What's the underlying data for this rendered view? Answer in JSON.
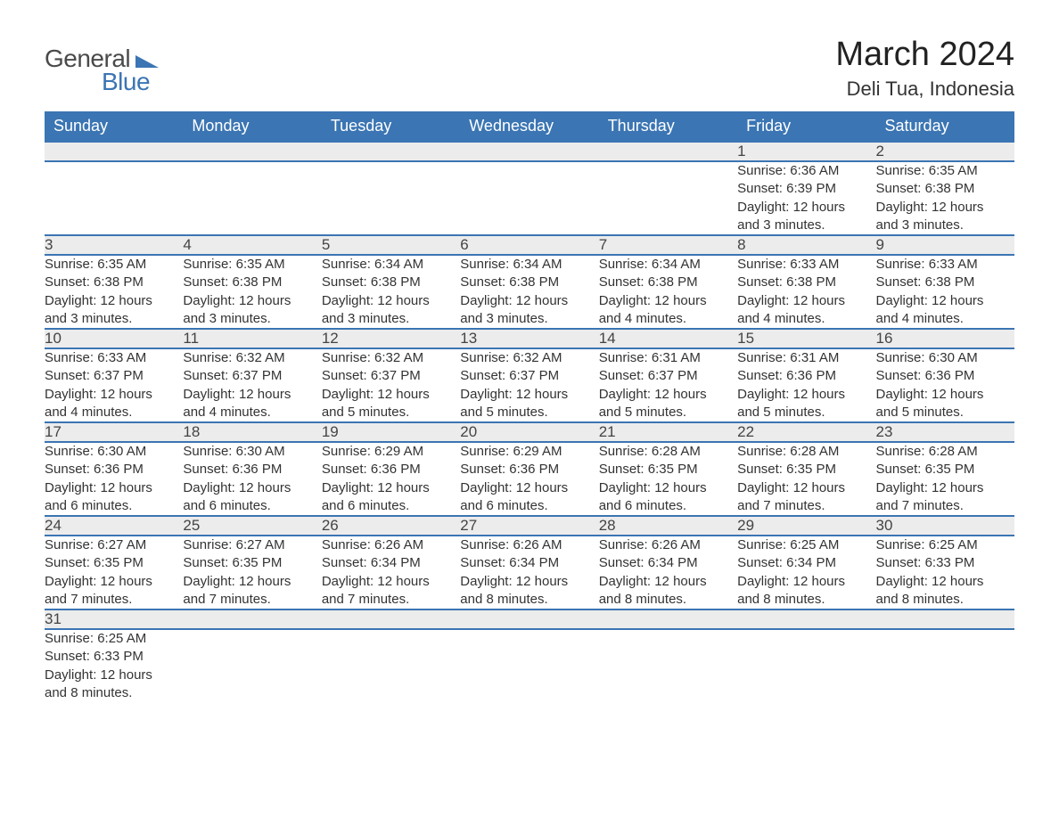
{
  "brand": {
    "part1": "General",
    "part2": "Blue",
    "flag_color": "#3b75b3",
    "text_gray": "#4a4a4a"
  },
  "title": "March 2024",
  "location": "Deli Tua, Indonesia",
  "colors": {
    "header_bg": "#3b75b3",
    "header_fg": "#ffffff",
    "daynum_bg": "#ececec",
    "row_divider": "#3b75b3",
    "body_text": "#333333"
  },
  "weekdays": [
    "Sunday",
    "Monday",
    "Tuesday",
    "Wednesday",
    "Thursday",
    "Friday",
    "Saturday"
  ],
  "weeks": [
    [
      null,
      null,
      null,
      null,
      null,
      {
        "n": "1",
        "sr": "Sunrise: 6:36 AM",
        "ss": "Sunset: 6:39 PM",
        "d1": "Daylight: 12 hours",
        "d2": "and 3 minutes."
      },
      {
        "n": "2",
        "sr": "Sunrise: 6:35 AM",
        "ss": "Sunset: 6:38 PM",
        "d1": "Daylight: 12 hours",
        "d2": "and 3 minutes."
      }
    ],
    [
      {
        "n": "3",
        "sr": "Sunrise: 6:35 AM",
        "ss": "Sunset: 6:38 PM",
        "d1": "Daylight: 12 hours",
        "d2": "and 3 minutes."
      },
      {
        "n": "4",
        "sr": "Sunrise: 6:35 AM",
        "ss": "Sunset: 6:38 PM",
        "d1": "Daylight: 12 hours",
        "d2": "and 3 minutes."
      },
      {
        "n": "5",
        "sr": "Sunrise: 6:34 AM",
        "ss": "Sunset: 6:38 PM",
        "d1": "Daylight: 12 hours",
        "d2": "and 3 minutes."
      },
      {
        "n": "6",
        "sr": "Sunrise: 6:34 AM",
        "ss": "Sunset: 6:38 PM",
        "d1": "Daylight: 12 hours",
        "d2": "and 3 minutes."
      },
      {
        "n": "7",
        "sr": "Sunrise: 6:34 AM",
        "ss": "Sunset: 6:38 PM",
        "d1": "Daylight: 12 hours",
        "d2": "and 4 minutes."
      },
      {
        "n": "8",
        "sr": "Sunrise: 6:33 AM",
        "ss": "Sunset: 6:38 PM",
        "d1": "Daylight: 12 hours",
        "d2": "and 4 minutes."
      },
      {
        "n": "9",
        "sr": "Sunrise: 6:33 AM",
        "ss": "Sunset: 6:38 PM",
        "d1": "Daylight: 12 hours",
        "d2": "and 4 minutes."
      }
    ],
    [
      {
        "n": "10",
        "sr": "Sunrise: 6:33 AM",
        "ss": "Sunset: 6:37 PM",
        "d1": "Daylight: 12 hours",
        "d2": "and 4 minutes."
      },
      {
        "n": "11",
        "sr": "Sunrise: 6:32 AM",
        "ss": "Sunset: 6:37 PM",
        "d1": "Daylight: 12 hours",
        "d2": "and 4 minutes."
      },
      {
        "n": "12",
        "sr": "Sunrise: 6:32 AM",
        "ss": "Sunset: 6:37 PM",
        "d1": "Daylight: 12 hours",
        "d2": "and 5 minutes."
      },
      {
        "n": "13",
        "sr": "Sunrise: 6:32 AM",
        "ss": "Sunset: 6:37 PM",
        "d1": "Daylight: 12 hours",
        "d2": "and 5 minutes."
      },
      {
        "n": "14",
        "sr": "Sunrise: 6:31 AM",
        "ss": "Sunset: 6:37 PM",
        "d1": "Daylight: 12 hours",
        "d2": "and 5 minutes."
      },
      {
        "n": "15",
        "sr": "Sunrise: 6:31 AM",
        "ss": "Sunset: 6:36 PM",
        "d1": "Daylight: 12 hours",
        "d2": "and 5 minutes."
      },
      {
        "n": "16",
        "sr": "Sunrise: 6:30 AM",
        "ss": "Sunset: 6:36 PM",
        "d1": "Daylight: 12 hours",
        "d2": "and 5 minutes."
      }
    ],
    [
      {
        "n": "17",
        "sr": "Sunrise: 6:30 AM",
        "ss": "Sunset: 6:36 PM",
        "d1": "Daylight: 12 hours",
        "d2": "and 6 minutes."
      },
      {
        "n": "18",
        "sr": "Sunrise: 6:30 AM",
        "ss": "Sunset: 6:36 PM",
        "d1": "Daylight: 12 hours",
        "d2": "and 6 minutes."
      },
      {
        "n": "19",
        "sr": "Sunrise: 6:29 AM",
        "ss": "Sunset: 6:36 PM",
        "d1": "Daylight: 12 hours",
        "d2": "and 6 minutes."
      },
      {
        "n": "20",
        "sr": "Sunrise: 6:29 AM",
        "ss": "Sunset: 6:36 PM",
        "d1": "Daylight: 12 hours",
        "d2": "and 6 minutes."
      },
      {
        "n": "21",
        "sr": "Sunrise: 6:28 AM",
        "ss": "Sunset: 6:35 PM",
        "d1": "Daylight: 12 hours",
        "d2": "and 6 minutes."
      },
      {
        "n": "22",
        "sr": "Sunrise: 6:28 AM",
        "ss": "Sunset: 6:35 PM",
        "d1": "Daylight: 12 hours",
        "d2": "and 7 minutes."
      },
      {
        "n": "23",
        "sr": "Sunrise: 6:28 AM",
        "ss": "Sunset: 6:35 PM",
        "d1": "Daylight: 12 hours",
        "d2": "and 7 minutes."
      }
    ],
    [
      {
        "n": "24",
        "sr": "Sunrise: 6:27 AM",
        "ss": "Sunset: 6:35 PM",
        "d1": "Daylight: 12 hours",
        "d2": "and 7 minutes."
      },
      {
        "n": "25",
        "sr": "Sunrise: 6:27 AM",
        "ss": "Sunset: 6:35 PM",
        "d1": "Daylight: 12 hours",
        "d2": "and 7 minutes."
      },
      {
        "n": "26",
        "sr": "Sunrise: 6:26 AM",
        "ss": "Sunset: 6:34 PM",
        "d1": "Daylight: 12 hours",
        "d2": "and 7 minutes."
      },
      {
        "n": "27",
        "sr": "Sunrise: 6:26 AM",
        "ss": "Sunset: 6:34 PM",
        "d1": "Daylight: 12 hours",
        "d2": "and 8 minutes."
      },
      {
        "n": "28",
        "sr": "Sunrise: 6:26 AM",
        "ss": "Sunset: 6:34 PM",
        "d1": "Daylight: 12 hours",
        "d2": "and 8 minutes."
      },
      {
        "n": "29",
        "sr": "Sunrise: 6:25 AM",
        "ss": "Sunset: 6:34 PM",
        "d1": "Daylight: 12 hours",
        "d2": "and 8 minutes."
      },
      {
        "n": "30",
        "sr": "Sunrise: 6:25 AM",
        "ss": "Sunset: 6:33 PM",
        "d1": "Daylight: 12 hours",
        "d2": "and 8 minutes."
      }
    ],
    [
      {
        "n": "31",
        "sr": "Sunrise: 6:25 AM",
        "ss": "Sunset: 6:33 PM",
        "d1": "Daylight: 12 hours",
        "d2": "and 8 minutes."
      },
      null,
      null,
      null,
      null,
      null,
      null
    ]
  ]
}
